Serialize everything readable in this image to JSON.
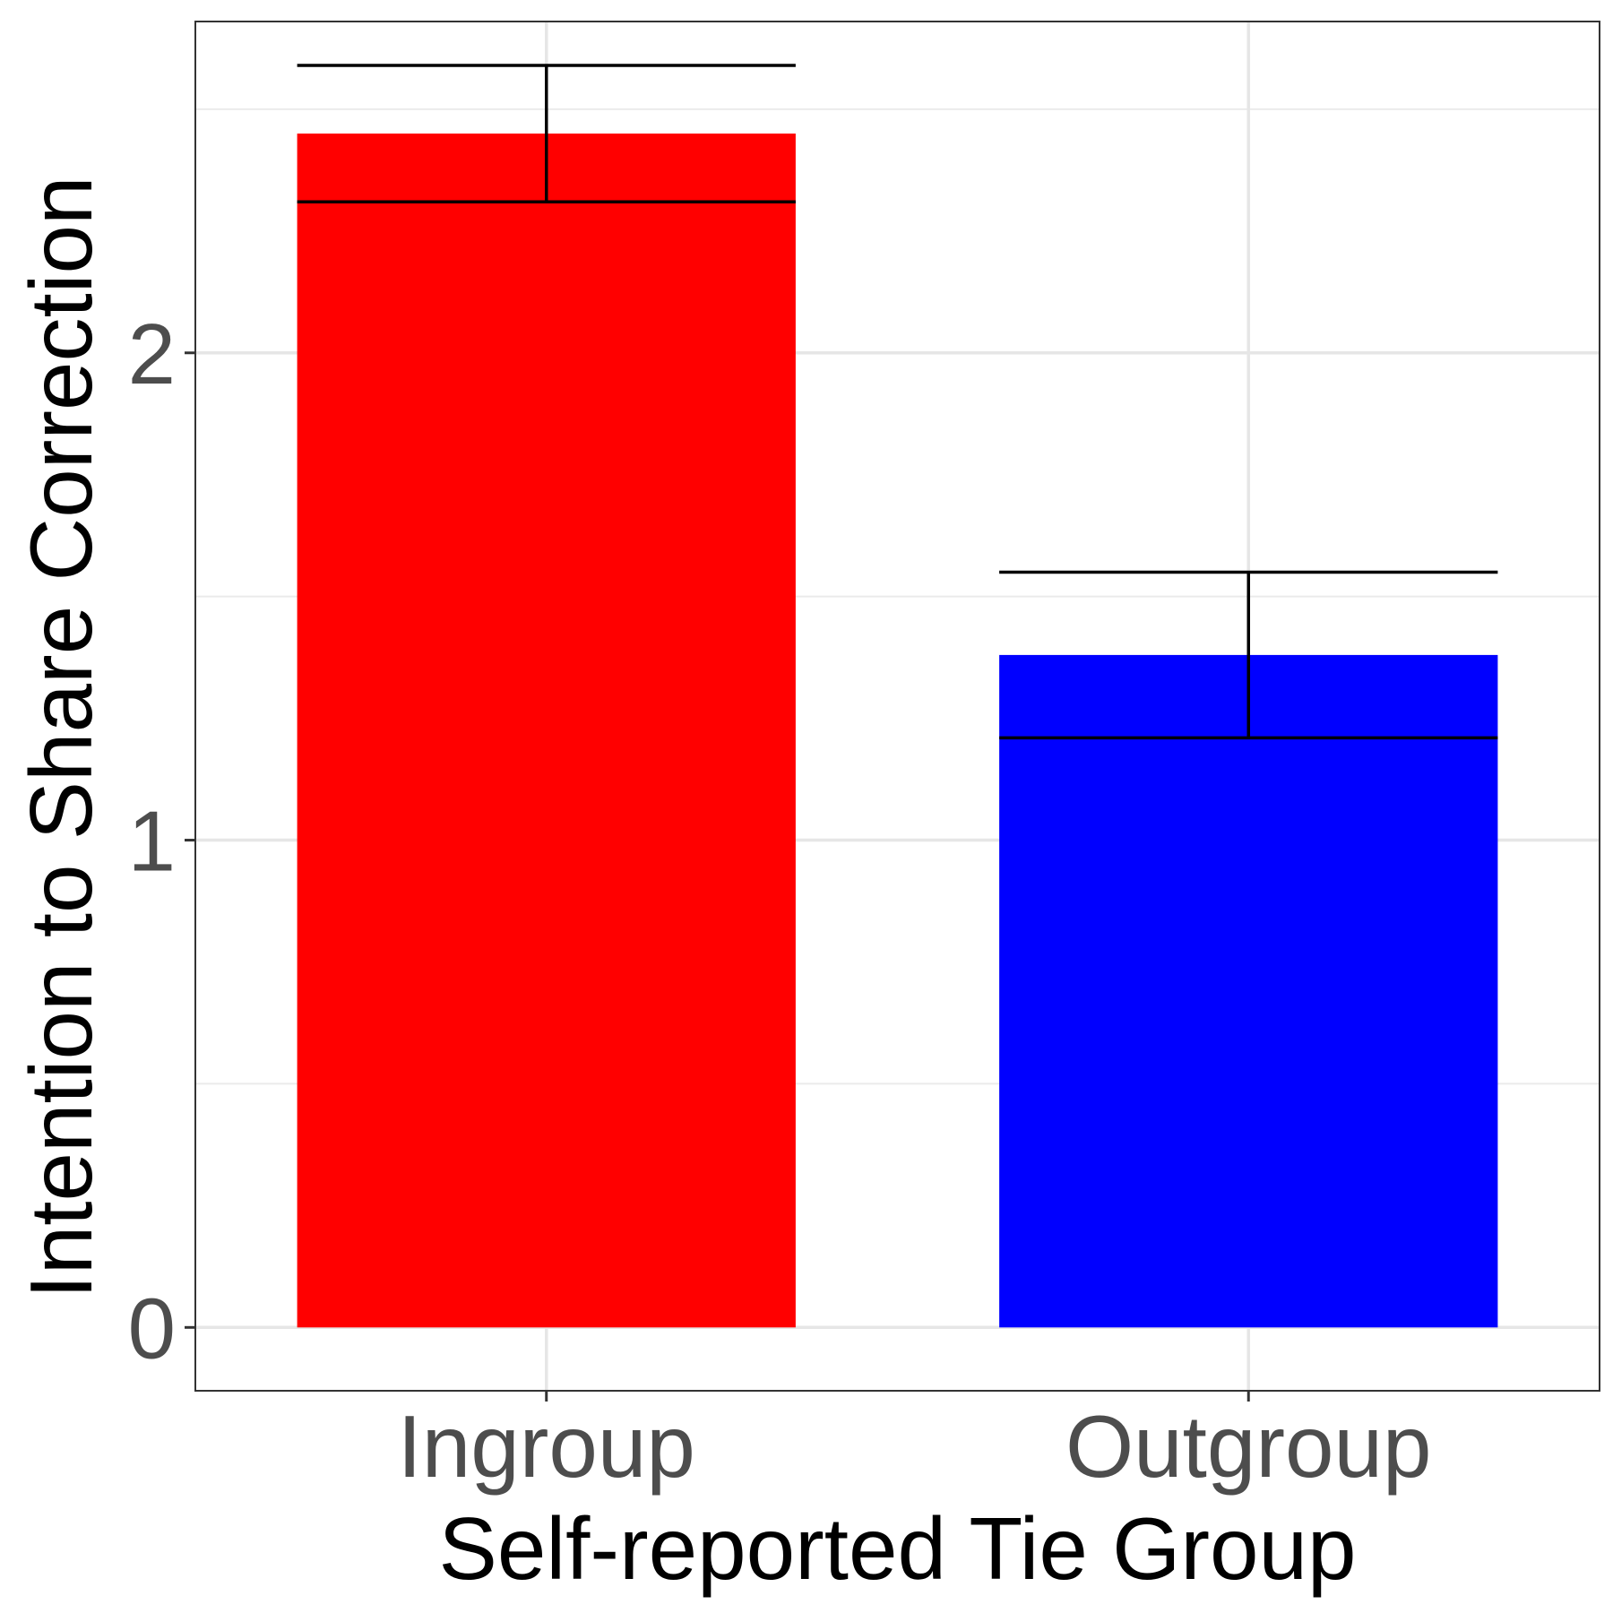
{
  "chart_data": {
    "type": "bar",
    "categories": [
      "Ingroup",
      "Outgroup"
    ],
    "values": [
      2.45,
      1.38
    ],
    "error_low": [
      2.31,
      1.21
    ],
    "error_high": [
      2.59,
      1.55
    ],
    "xlabel": "Self-reported Tie Group",
    "ylabel": "Intention to Share Correction",
    "ylim": [
      -0.13,
      2.68
    ],
    "yticks": [
      0,
      1,
      2
    ],
    "ytick_labels": [
      "0",
      "1",
      "2"
    ],
    "bar_colors": [
      "#ff0000",
      "#0000ff"
    ],
    "grid": true,
    "legend": "none"
  }
}
